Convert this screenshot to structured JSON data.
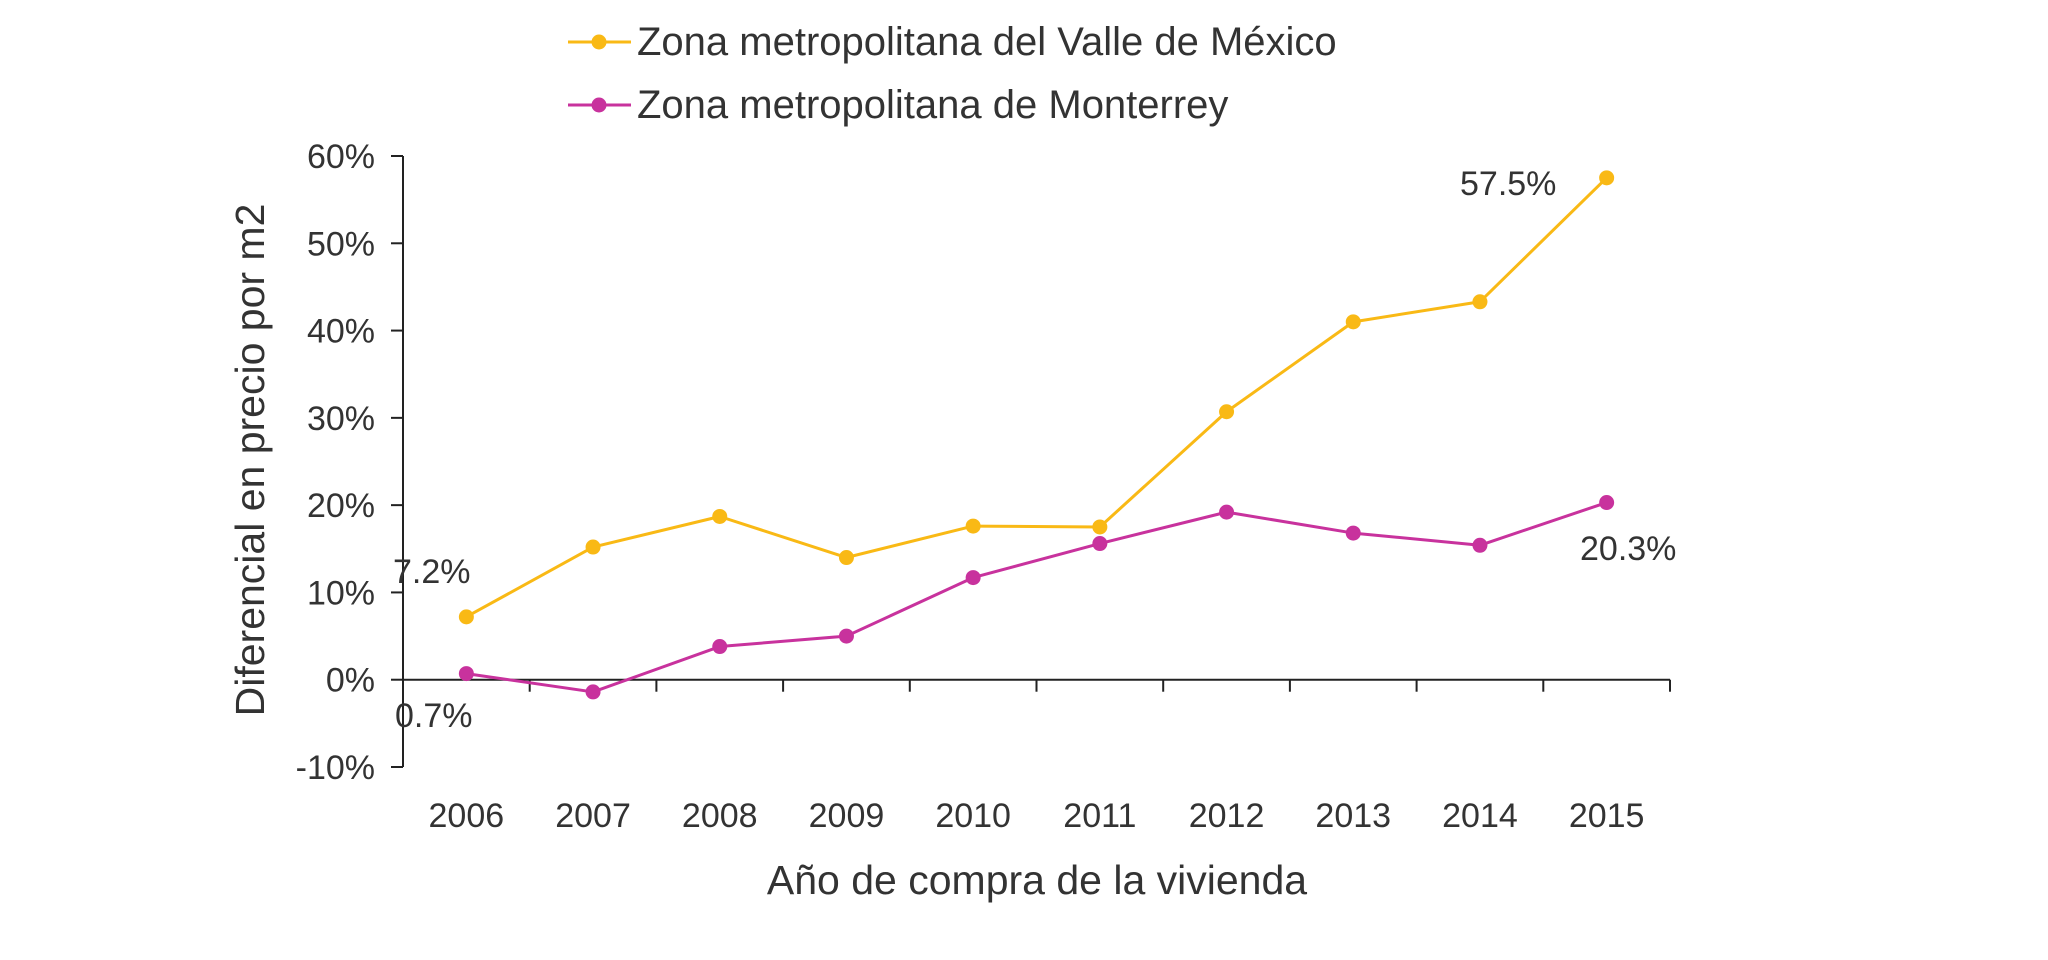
{
  "chart_data": {
    "type": "line",
    "title": "",
    "xlabel": "Año de compra de la vivienda",
    "ylabel": "Diferencial en precio por m2",
    "categories": [
      "2006",
      "2007",
      "2008",
      "2009",
      "2010",
      "2011",
      "2012",
      "2013",
      "2014",
      "2015"
    ],
    "ylim": [
      -10,
      60
    ],
    "yticks": [
      -10,
      0,
      10,
      20,
      30,
      40,
      50,
      60
    ],
    "ytick_labels": [
      "-10%",
      "0%",
      "10%",
      "20%",
      "30%",
      "40%",
      "50%",
      "60%"
    ],
    "grid": false,
    "legend_position": "top",
    "series": [
      {
        "name": "Zona metropolitana del Valle de México",
        "color": "#F9B915",
        "values": [
          7.2,
          15.2,
          18.7,
          14.0,
          17.6,
          17.5,
          30.7,
          41.0,
          43.3,
          57.5
        ],
        "annotations": [
          {
            "index": 0,
            "text": "7.2%"
          },
          {
            "index": 9,
            "text": "57.5%"
          }
        ]
      },
      {
        "name": "Zona metropolitana de Monterrey",
        "color": "#C8329D",
        "values": [
          0.7,
          -1.4,
          3.8,
          5.0,
          11.7,
          15.6,
          19.2,
          16.8,
          15.4,
          20.3
        ],
        "annotations": [
          {
            "index": 0,
            "text": "0.7%"
          },
          {
            "index": 9,
            "text": "20.3%"
          }
        ]
      }
    ]
  }
}
